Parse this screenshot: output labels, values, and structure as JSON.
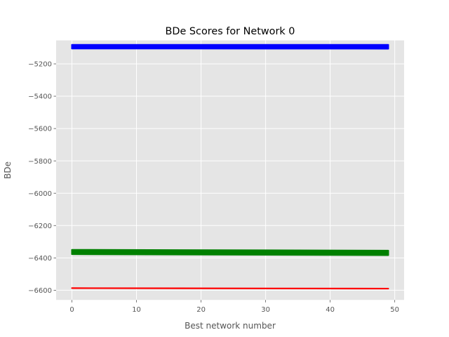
{
  "chart_data": {
    "type": "line",
    "title": "BDe Scores for Network 0",
    "xlabel": "Best network number",
    "ylabel": "BDe",
    "xlim": [
      -2.45,
      51.45
    ],
    "ylim": [
      -6660,
      -5055
    ],
    "xticks": [
      0,
      10,
      20,
      30,
      40,
      50
    ],
    "yticks": [
      -5200,
      -5400,
      -5600,
      -5800,
      -6000,
      -6200,
      -6400,
      -6600
    ],
    "grid": true,
    "style": "ggplot",
    "series": [
      {
        "color": "#0000ff",
        "x": [
          0,
          49
        ],
        "y": [
          -5082,
          -5082
        ]
      },
      {
        "color": "#0000ff",
        "x": [
          0,
          49
        ],
        "y": [
          -5086,
          -5087
        ]
      },
      {
        "color": "#0000ff",
        "x": [
          0,
          49
        ],
        "y": [
          -5090,
          -5091
        ]
      },
      {
        "color": "#0000ff",
        "x": [
          0,
          49
        ],
        "y": [
          -5094,
          -5095
        ]
      },
      {
        "color": "#0000ff",
        "x": [
          0,
          49
        ],
        "y": [
          -5098,
          -5099
        ]
      },
      {
        "color": "#0000ff",
        "x": [
          0,
          49
        ],
        "y": [
          -5102,
          -5103
        ]
      },
      {
        "color": "#0000ff",
        "x": [
          0,
          49
        ],
        "y": [
          -5105,
          -5106
        ]
      },
      {
        "color": "#008000",
        "x": [
          0,
          49
        ],
        "y": [
          -6350,
          -6355
        ]
      },
      {
        "color": "#008000",
        "x": [
          0,
          49
        ],
        "y": [
          -6353,
          -6358
        ]
      },
      {
        "color": "#008000",
        "x": [
          0,
          49
        ],
        "y": [
          -6356,
          -6361
        ]
      },
      {
        "color": "#008000",
        "x": [
          0,
          49
        ],
        "y": [
          -6359,
          -6364
        ]
      },
      {
        "color": "#008000",
        "x": [
          0,
          49
        ],
        "y": [
          -6362,
          -6367
        ]
      },
      {
        "color": "#008000",
        "x": [
          0,
          49
        ],
        "y": [
          -6365,
          -6370
        ]
      },
      {
        "color": "#008000",
        "x": [
          0,
          49
        ],
        "y": [
          -6368,
          -6373
        ]
      },
      {
        "color": "#008000",
        "x": [
          0,
          49
        ],
        "y": [
          -6371,
          -6376
        ]
      },
      {
        "color": "#008000",
        "x": [
          0,
          49
        ],
        "y": [
          -6374,
          -6380
        ]
      },
      {
        "color": "#008000",
        "x": [
          0,
          49
        ],
        "y": [
          -6377,
          -6383
        ]
      },
      {
        "color": "#ff0000",
        "x": [
          0,
          49
        ],
        "y": [
          -6587,
          -6590
        ]
      }
    ]
  }
}
